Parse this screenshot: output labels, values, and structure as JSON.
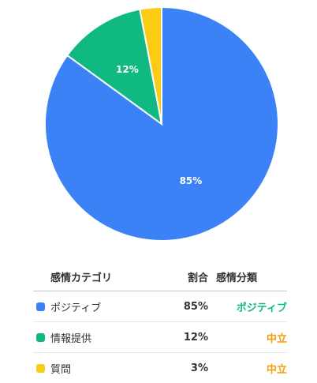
{
  "chart_data": {
    "type": "pie",
    "categories": [
      "ポジティブ",
      "情報提供",
      "質問"
    ],
    "values": [
      85,
      12,
      3
    ],
    "value_labels": [
      "85%",
      "12%",
      "3%"
    ],
    "colors": [
      "#3b82f6",
      "#10b981",
      "#facc15"
    ],
    "start_angle_deg": 0,
    "direction": "clockwise",
    "title": "",
    "legend": "none"
  },
  "table": {
    "headers": {
      "category": "感情カテゴリ",
      "ratio": "割合",
      "classification": "感情分類"
    },
    "rows": [
      {
        "category": "ポジティブ",
        "ratio": "85%",
        "classification": "ポジティブ",
        "swatch_color": "#3b82f6",
        "class_color": "#10b981"
      },
      {
        "category": "情報提供",
        "ratio": "12%",
        "classification": "中立",
        "swatch_color": "#10b981",
        "class_color": "#f59e0b"
      },
      {
        "category": "質問",
        "ratio": "3%",
        "classification": "中立",
        "swatch_color": "#facc15",
        "class_color": "#f59e0b"
      }
    ]
  }
}
